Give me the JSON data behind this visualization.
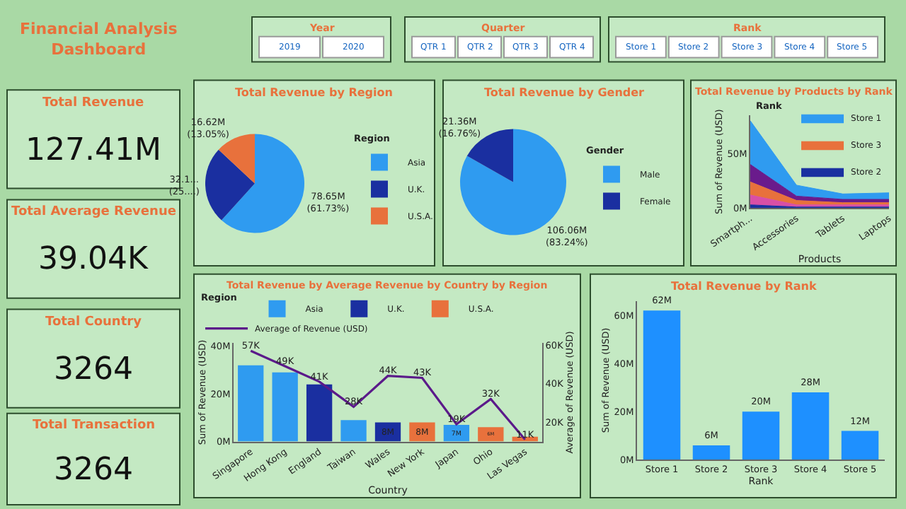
{
  "chart_data": [
    {
      "type": "other",
      "title": "Financial Analysis Dashboard"
    },
    {
      "type": "other",
      "title": "Year",
      "annotations": [
        "2019",
        "2020"
      ]
    },
    {
      "type": "other",
      "title": "Quarter",
      "annotations": [
        "QTR 1",
        "QTR 2",
        "QTR 3",
        "QTR 4"
      ]
    },
    {
      "type": "other",
      "title": "Rank",
      "annotations": [
        "Store 1",
        "Store 2",
        "Store 3",
        "Store 4",
        "Store 5"
      ]
    },
    {
      "type": "other",
      "title": "Total Revenue",
      "annotations": [
        "127.41M"
      ]
    },
    {
      "type": "other",
      "title": "Total Average Revenue",
      "annotations": [
        "39.04K"
      ]
    },
    {
      "type": "other",
      "title": "Total Country",
      "annotations": [
        "3264"
      ]
    },
    {
      "type": "other",
      "title": "Total Transaction",
      "annotations": [
        "3264"
      ]
    },
    {
      "type": "pie",
      "title": "Total Revenue by Region",
      "categories": [
        "Asia",
        "U.K.",
        "U.S.A."
      ],
      "values": [
        61.73,
        25.22,
        13.05
      ],
      "colors": [
        "#2f9bf0",
        "#1a2fa0",
        "#e8713c"
      ],
      "value_labels": [
        "78.65M (61.73%)",
        "32.1... (25....)",
        "16.62M (13.05%)"
      ],
      "legend_title": "Region",
      "legend": "right"
    },
    {
      "type": "pie",
      "title": "Total Revenue by Gender",
      "categories": [
        "Male",
        "Female"
      ],
      "values": [
        83.24,
        16.76
      ],
      "colors": [
        "#2f9bf0",
        "#1a2fa0"
      ],
      "value_labels": [
        "106.06M (83.24%)",
        "21.36M (16.76%)"
      ],
      "legend_title": "Gender",
      "legend": "right"
    },
    {
      "type": "area",
      "stacked": true,
      "title": "Total Revenue by Products by Rank",
      "categories": [
        "Smartph...",
        "Accessories",
        "Tablets",
        "Laptops"
      ],
      "xlabel": "Products",
      "ylabel": "Sum of Revenue (USD)",
      "legend_title": "Rank",
      "legend": "top right",
      "ylim": [
        0,
        85
      ],
      "yticks": [
        {
          "value": 0,
          "label": "0M"
        },
        {
          "value": 50,
          "label": "50M"
        }
      ],
      "series": [
        {
          "name": "Store 2",
          "color": "#1a2fa0",
          "values": [
            3,
            1,
            1,
            1
          ]
        },
        {
          "color": "#d94fa6",
          "values": [
            9,
            2,
            2,
            2
          ]
        },
        {
          "name": "Store 3",
          "color": "#e8713c",
          "values": [
            12,
            4,
            2,
            2
          ]
        },
        {
          "color": "#6a1b8c",
          "values": [
            16,
            4,
            3,
            3
          ]
        },
        {
          "name": "Store 1",
          "color": "#2f9bf0",
          "values": [
            40,
            10,
            5,
            6
          ]
        }
      ]
    },
    {
      "type": "bar",
      "title": "Total Revenue by Average Revenue by Country by Region",
      "categories": [
        "Singapore",
        "Hong Kong",
        "England",
        "Taiwan",
        "Wales",
        "New York",
        "Japan",
        "Ohio",
        "Las Vegas"
      ],
      "xlabel": "Country",
      "ylabel": "Sum of Revenue (USD)",
      "y2label": "Average of Revenue (USD)",
      "legend_title": "Region",
      "legend": "top left",
      "ylim": [
        0,
        41.3
      ],
      "yticks": [
        {
          "value": 0,
          "label": "0M"
        },
        {
          "value": 20,
          "label": "20M"
        },
        {
          "value": 40,
          "label": "40M"
        }
      ],
      "y2lim": [
        10,
        61
      ],
      "y2ticks": [
        {
          "value": 20,
          "label": "20K"
        },
        {
          "value": 40,
          "label": "40K"
        },
        {
          "value": 60,
          "label": "60K"
        }
      ],
      "series": [
        {
          "name": "Asia",
          "color": "#2f9bf0",
          "values": [
            32,
            29,
            null,
            9,
            null,
            null,
            7,
            null,
            null
          ],
          "value_labels": [
            null,
            null,
            null,
            null,
            null,
            null,
            "7M",
            null,
            null
          ]
        },
        {
          "name": "U.K.",
          "color": "#1a2fa0",
          "values": [
            null,
            null,
            24,
            null,
            8,
            null,
            null,
            null,
            null
          ],
          "value_labels": [
            null,
            null,
            null,
            null,
            "8M",
            null,
            null,
            null,
            null
          ]
        },
        {
          "name": "U.S.A.",
          "color": "#e8713c",
          "values": [
            null,
            null,
            null,
            null,
            null,
            8,
            null,
            6,
            2
          ],
          "value_labels": [
            null,
            null,
            null,
            null,
            null,
            "8M",
            null,
            "6M",
            null
          ]
        },
        {
          "name": "Average of Revenue (USD)",
          "type": "line",
          "axis": "y2",
          "color": "#5b1a8a",
          "values": [
            57,
            49,
            41,
            28,
            44,
            43,
            19,
            32,
            11
          ],
          "value_labels": [
            "57K",
            "49K",
            "41K",
            "28K",
            "44K",
            "43K",
            "19K",
            "32K",
            "11K"
          ]
        }
      ]
    },
    {
      "type": "bar",
      "title": "Total Revenue by Rank",
      "categories": [
        "Store 1",
        "Store 2",
        "Store 3",
        "Store 4",
        "Store 5"
      ],
      "values": [
        62,
        6,
        20,
        28,
        12
      ],
      "value_labels": [
        "62M",
        "6M",
        "20M",
        "28M",
        "12M"
      ],
      "color": "#1e90ff",
      "xlabel": "Rank",
      "ylabel": "Sum of Revenue (USD)",
      "ylim": [
        0,
        66
      ],
      "yticks": [
        {
          "value": 0,
          "label": "0M"
        },
        {
          "value": 20,
          "label": "20M"
        },
        {
          "value": 40,
          "label": "40M"
        },
        {
          "value": 60,
          "label": "60M"
        }
      ]
    }
  ]
}
